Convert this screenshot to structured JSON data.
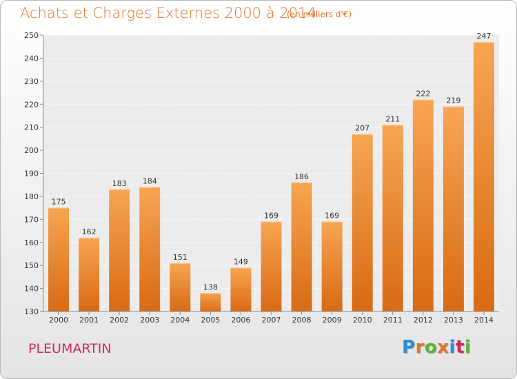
{
  "title": "Achats et Charges Externes 2000 à 2014",
  "subtitle": "(en milliers d'€)",
  "city": "PLEUMARTIN",
  "logo": {
    "text": "Proxiti",
    "letter_colors": [
      "#2a8fd6",
      "#e8722a",
      "#5db53c",
      "#e8722a",
      "#2a8fd6",
      "#d2285a",
      "#5db53c"
    ]
  },
  "chart_data": {
    "type": "bar",
    "categories": [
      "2000",
      "2001",
      "2002",
      "2003",
      "2004",
      "2005",
      "2006",
      "2007",
      "2008",
      "2009",
      "2010",
      "2011",
      "2012",
      "2013",
      "2014"
    ],
    "values": [
      175,
      162,
      183,
      184,
      151,
      138,
      149,
      169,
      186,
      169,
      207,
      211,
      222,
      219,
      247
    ],
    "ylim": [
      130,
      250
    ],
    "yticks": [
      130,
      140,
      150,
      160,
      170,
      180,
      190,
      200,
      210,
      220,
      230,
      240,
      250
    ],
    "grid": true,
    "bar_color": "#f29a45"
  }
}
